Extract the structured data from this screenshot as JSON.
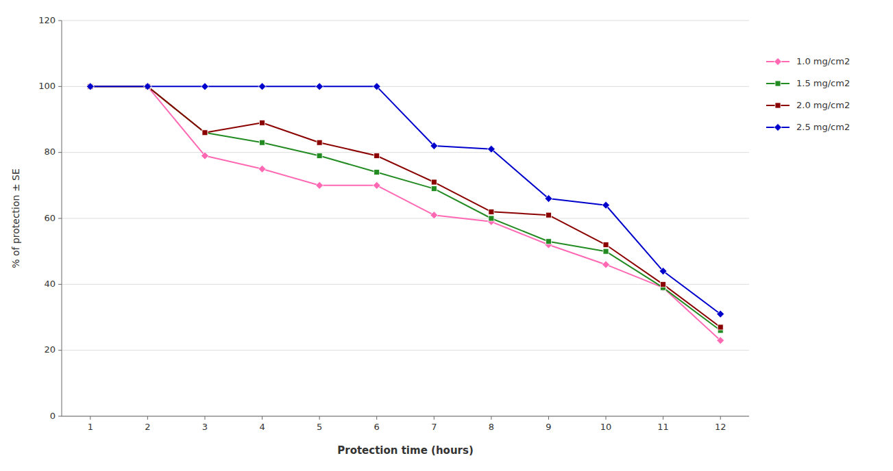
{
  "chart_data": {
    "type": "line",
    "x": [
      1,
      2,
      3,
      4,
      5,
      6,
      7,
      8,
      9,
      10,
      11,
      12
    ],
    "series": [
      {
        "name": "1.0 mg/cm2",
        "color": "#FF69B4",
        "marker": "diamond",
        "values": [
          100,
          100,
          79,
          75,
          70,
          70,
          61,
          59,
          52,
          46,
          39,
          23
        ]
      },
      {
        "name": "1.5 mg/cm2",
        "color": "#228B22",
        "marker": "square",
        "values": [
          100,
          100,
          86,
          83,
          79,
          74,
          69,
          60,
          53,
          50,
          39,
          26
        ]
      },
      {
        "name": "2.0 mg/cm2",
        "color": "#8B0000",
        "marker": "square",
        "values": [
          100,
          100,
          86,
          89,
          83,
          79,
          71,
          62,
          61,
          52,
          40,
          27
        ]
      },
      {
        "name": "2.5 mg/cm2",
        "color": "#0000CD",
        "marker": "diamond",
        "values": [
          100,
          100,
          100,
          100,
          100,
          100,
          82,
          81,
          66,
          64,
          44,
          31
        ]
      }
    ],
    "xlabel": "Protection time (hours)",
    "ylabel": "% of protection ± SE",
    "xlim": [
      0.5,
      12.5
    ],
    "xticks": [
      1,
      2,
      3,
      4,
      5,
      6,
      7,
      8,
      9,
      10,
      11,
      12
    ],
    "ylim": [
      0,
      120
    ],
    "yticks": [
      0,
      20,
      40,
      60,
      80,
      100,
      120
    ],
    "grid": true,
    "legend": "right"
  }
}
